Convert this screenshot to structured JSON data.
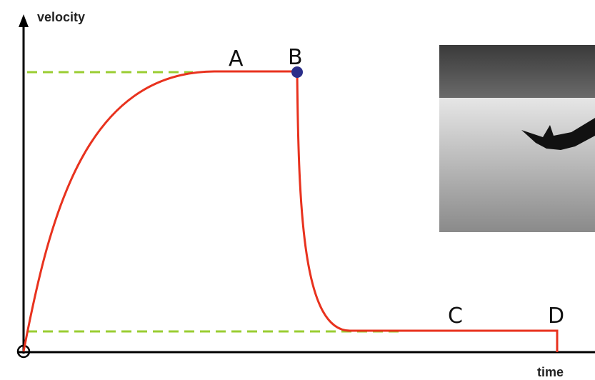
{
  "axes": {
    "y_label": "velocity",
    "x_label": "time"
  },
  "points": [
    "A",
    "B",
    "C",
    "D"
  ]
}
